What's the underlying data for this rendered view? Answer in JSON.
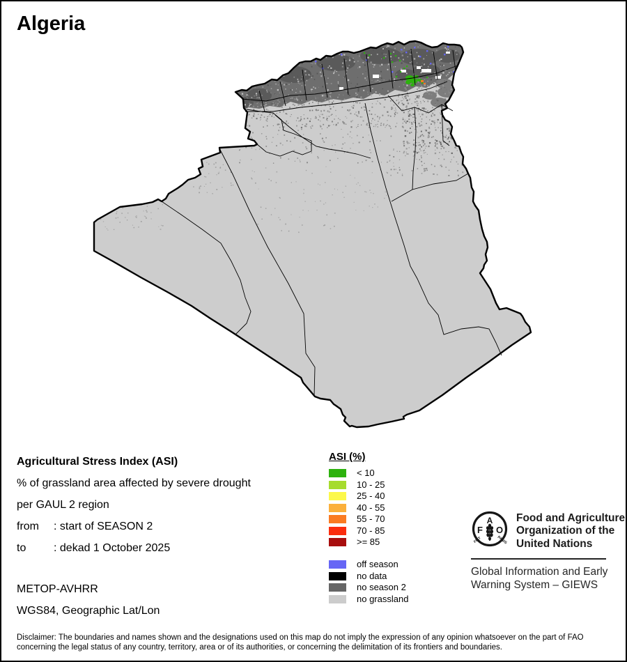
{
  "title": "Algeria",
  "info": {
    "heading": "Agricultural Stress Index (ASI)",
    "line1": "% of grassland area affected by severe drought",
    "line2": "per GAUL 2 region",
    "from_label": "from",
    "from_value": ": start of SEASON 2",
    "to_label": "to",
    "to_value": ": dekad 1 October 2025",
    "sensor": "METOP-AVHRR",
    "projection": "WGS84, Geographic Lat/Lon"
  },
  "legend": {
    "title": "ASI (%)",
    "classes": [
      {
        "label": "< 10",
        "color": "#2DB20E"
      },
      {
        "label": "10 - 25",
        "color": "#A6DC2E"
      },
      {
        "label": "25 - 40",
        "color": "#FCF84A"
      },
      {
        "label": "40 - 55",
        "color": "#FBB03B"
      },
      {
        "label": "55 - 70",
        "color": "#FA7B22"
      },
      {
        "label": "70 - 85",
        "color": "#FB2D0E"
      },
      {
        "label": ">= 85",
        "color": "#A80E0E"
      }
    ],
    "extra": [
      {
        "label": "off season",
        "color": "#6666F5"
      },
      {
        "label": "no data",
        "color": "#000000"
      },
      {
        "label": "no season 2",
        "color": "#666666"
      },
      {
        "label": "no grassland",
        "color": "#CCCCCC"
      }
    ]
  },
  "org": {
    "name_line1": "Food and Agriculture",
    "name_line2": "Organization of the",
    "name_line3": "United Nations",
    "giews_line1": "Global Information and Early",
    "giews_line2": "Warning System – GIEWS",
    "logo": {
      "top": "A",
      "left": "F",
      "right": "O",
      "motto_left": "FIAT",
      "motto_right": "PANIS"
    }
  },
  "disclaimer": "Disclaimer: The boundaries and names shown and the designations used on this map do not imply the expression of any opinion whatsoever on the part of FAO concerning the legal status of any country, territory, area or of its authorities, or concerning the delimitation of its frontiers and boundaries.",
  "map": {
    "country": "Algeria",
    "land_fill": "#CDCDCD",
    "boundary_color": "#000000",
    "no_season2_fill": "#6E6E6E",
    "off_season_color": "#6666F5",
    "asi_green": "#2DB20E",
    "asi_orange": "#FA7B22",
    "no_data_white": "#FFFFFF"
  }
}
